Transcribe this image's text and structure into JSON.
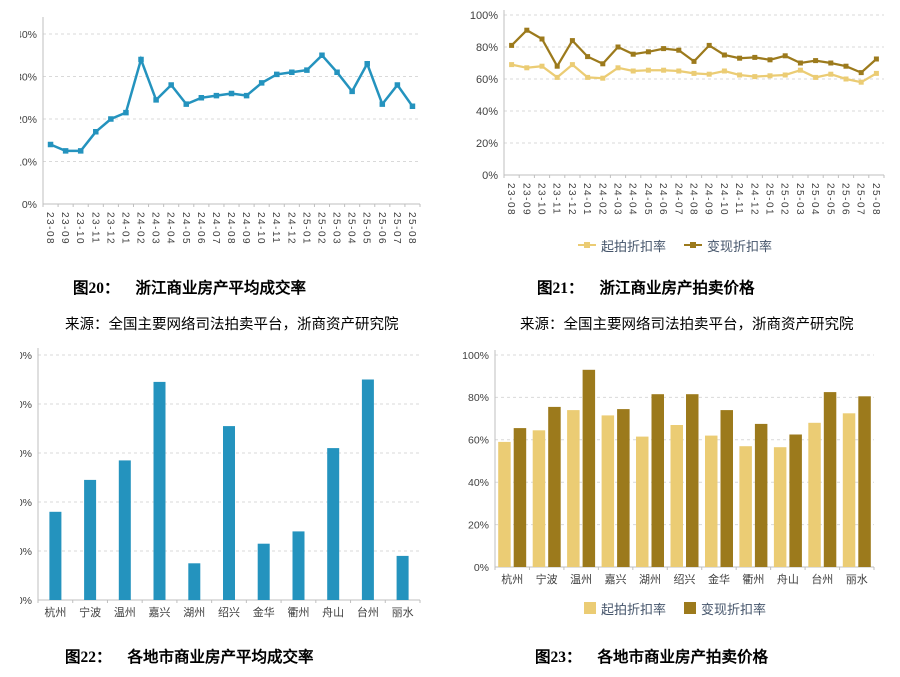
{
  "captions": {
    "fig20": {
      "label": "图20：",
      "title": "浙江商业房产平均成交率"
    },
    "fig21": {
      "label": "图21：",
      "title": "浙江商业房产拍卖价格"
    },
    "fig22": {
      "label": "图22：",
      "title": "各地市商业房产平均成交率"
    },
    "fig23": {
      "label": "图23：",
      "title": "各地市商业房产拍卖价格"
    }
  },
  "sources": {
    "left": "来源：全国主要网络司法拍卖平台，浙商资产研究院",
    "right": "来源：全国主要网络司法拍卖平台，浙商资产研究院"
  },
  "legend": {
    "qipai": "起拍折扣率",
    "bianxian": "变现折扣率"
  },
  "colors": {
    "teal": "#2493BE",
    "gold_light": "#EBCC74",
    "gold_dark": "#9C7A1C",
    "legend_text": "#44546A",
    "axis_text": "#404040",
    "grid": "#D9D9D9",
    "axis_line": "#BFBFBF"
  },
  "chart_data": [
    {
      "id": "fig20",
      "type": "line",
      "title": "图20： 浙江商业房产平均成交率",
      "x": [
        "23-08",
        "23-09",
        "23-10",
        "23-11",
        "23-12",
        "24-01",
        "24-02",
        "24-03",
        "24-04",
        "24-05",
        "24-06",
        "24-07",
        "24-08",
        "24-09",
        "24-10",
        "24-11",
        "24-12",
        "25-01",
        "25-02",
        "25-03",
        "25-04",
        "25-05",
        "25-06",
        "25-07",
        "25-08"
      ],
      "series": [
        {
          "name": "平均成交率",
          "color": "#2493BE",
          "values": [
            14,
            12.5,
            12.5,
            17,
            20,
            21.5,
            34,
            24.5,
            28,
            23.5,
            25,
            25.5,
            26,
            25.5,
            28.5,
            30.5,
            31,
            31.5,
            35,
            31,
            26.5,
            33,
            23.5,
            28,
            23
          ]
        }
      ],
      "ylim": [
        0,
        40
      ],
      "ytick_step": 10,
      "grid": true,
      "legend_position": "none",
      "xlabel_rotate": 90
    },
    {
      "id": "fig21",
      "type": "line",
      "title": "图21： 浙江商业房产拍卖价格",
      "x": [
        "23-08",
        "23-09",
        "23-10",
        "23-11",
        "23-12",
        "24-01",
        "24-02",
        "24-03",
        "24-04",
        "24-05",
        "24-06",
        "24-07",
        "24-08",
        "24-09",
        "24-10",
        "24-11",
        "24-12",
        "25-01",
        "25-02",
        "25-03",
        "25-04",
        "25-05",
        "25-06",
        "25-07",
        "25-08"
      ],
      "series": [
        {
          "name": "起拍折扣率",
          "color": "#EBCC74",
          "values": [
            69,
            67,
            68,
            61,
            69,
            61,
            60.5,
            67,
            65,
            65.5,
            65.5,
            65,
            63.5,
            63,
            65,
            62.5,
            61.5,
            62,
            62.5,
            65.5,
            61,
            63,
            60,
            58,
            63.5
          ]
        },
        {
          "name": "变现折扣率",
          "color": "#9C7A1C",
          "values": [
            81,
            90.5,
            85,
            68,
            84,
            74,
            69.5,
            80,
            75.5,
            77,
            79,
            78,
            71,
            81,
            75,
            73,
            73.5,
            72,
            74.5,
            70,
            71.5,
            70,
            68,
            64,
            72.5
          ]
        }
      ],
      "ylim": [
        0,
        100
      ],
      "ytick_step": 20,
      "grid": true,
      "legend_position": "bottom",
      "xlabel_rotate": 90
    },
    {
      "id": "fig22",
      "type": "bar",
      "title": "图22： 各地市商业房产平均成交率",
      "categories": [
        "杭州",
        "宁波",
        "温州",
        "嘉兴",
        "湖州",
        "绍兴",
        "金华",
        "衢州",
        "舟山",
        "台州",
        "丽水"
      ],
      "series": [
        {
          "name": "平均成交率",
          "color": "#2493BE",
          "values": [
            18,
            24.5,
            28.5,
            44.5,
            7.5,
            35.5,
            11.5,
            14,
            31,
            45,
            9
          ]
        }
      ],
      "ylim": [
        0,
        50
      ],
      "ytick_step": 10,
      "grid": true,
      "legend_position": "none",
      "xlabel_rotate": 0
    },
    {
      "id": "fig23",
      "type": "bar",
      "title": "图23： 各地市商业房产拍卖价格",
      "categories": [
        "杭州",
        "宁波",
        "温州",
        "嘉兴",
        "湖州",
        "绍兴",
        "金华",
        "衢州",
        "舟山",
        "台州",
        "丽水"
      ],
      "series": [
        {
          "name": "起拍折扣率",
          "color": "#EBCC74",
          "values": [
            59,
            64.5,
            74,
            71.5,
            61.5,
            67,
            62,
            57,
            56.5,
            68,
            72.5
          ]
        },
        {
          "name": "变现折扣率",
          "color": "#9C7A1C",
          "values": [
            65.5,
            75.5,
            93,
            74.5,
            81.5,
            81.5,
            74,
            67.5,
            62.5,
            82.5,
            80.5
          ]
        }
      ],
      "ylim": [
        0,
        100
      ],
      "ytick_step": 20,
      "grid": true,
      "legend_position": "bottom",
      "xlabel_rotate": 0
    }
  ]
}
